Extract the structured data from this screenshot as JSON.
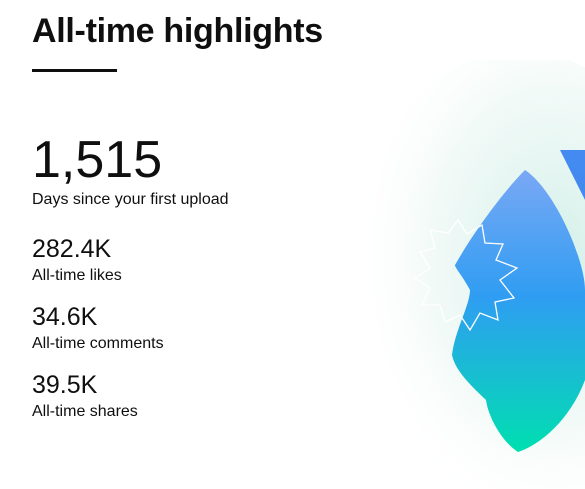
{
  "header": {
    "title": "All-time highlights"
  },
  "stats": [
    {
      "value": "1,515",
      "label": "Days since your first upload"
    },
    {
      "value": "282.4K",
      "label": "All-time likes"
    },
    {
      "value": "34.6K",
      "label": "All-time comments"
    },
    {
      "value": "39.5K",
      "label": "All-time shares"
    }
  ]
}
